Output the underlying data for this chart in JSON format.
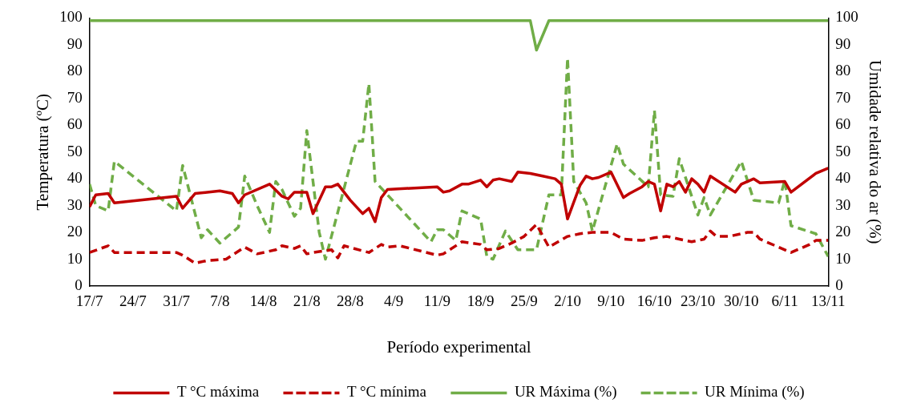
{
  "chart_data": {
    "type": "line",
    "xlabel": "Período experimental",
    "ylabel": "Temperatura (ºC)",
    "y2label": "Umidade relativa do ar (%)",
    "xlim": [
      "--07-17",
      "--11-13"
    ],
    "xticks": [
      {
        "value": "--07-17",
        "label": "17/7"
      },
      {
        "value": "--07-24",
        "label": "24/7"
      },
      {
        "value": "--07-31",
        "label": "31/7"
      },
      {
        "value": "--08-07",
        "label": "7/8"
      },
      {
        "value": "--08-14",
        "label": "14/8"
      },
      {
        "value": "--08-21",
        "label": "21/8"
      },
      {
        "value": "--08-28",
        "label": "28/8"
      },
      {
        "value": "--09-04",
        "label": "4/9"
      },
      {
        "value": "--09-11",
        "label": "11/9"
      },
      {
        "value": "--09-18",
        "label": "18/9"
      },
      {
        "value": "--09-25",
        "label": "25/9"
      },
      {
        "value": "--10-02",
        "label": "2/10"
      },
      {
        "value": "--10-09",
        "label": "9/10"
      },
      {
        "value": "--10-16",
        "label": "16/10"
      },
      {
        "value": "--10-23",
        "label": "23/10"
      },
      {
        "value": "--10-30",
        "label": "30/10"
      },
      {
        "value": "--11-06",
        "label": "6/11"
      },
      {
        "value": "--11-13",
        "label": "13/11"
      }
    ],
    "ylim": [
      0,
      100
    ],
    "yticks": [
      0,
      10,
      20,
      30,
      40,
      50,
      60,
      70,
      80,
      90,
      100
    ],
    "y2lim": [
      0,
      100
    ],
    "y2ticks": [
      0,
      10,
      20,
      30,
      40,
      50,
      60,
      70,
      80,
      90,
      100
    ],
    "grid": false,
    "legend": "bottom",
    "marker": "none",
    "series": [
      {
        "name": "T °C máxima",
        "color": "#c00000",
        "line_style": "solid",
        "x": [
          "--07-17",
          "--07-18",
          "--07-20",
          "--07-21",
          "--07-31",
          "--08-01",
          "--08-03",
          "--08-07",
          "--08-09",
          "--08-10",
          "--08-11",
          "--08-15",
          "--08-17",
          "--08-18",
          "--08-19",
          "--08-21",
          "--08-22",
          "--08-24",
          "--08-25",
          "--08-26",
          "--08-28",
          "--08-30",
          "--08-31",
          "--09-01",
          "--09-02",
          "--09-03",
          "--09-11",
          "--09-12",
          "--09-13",
          "--09-15",
          "--09-16",
          "--09-18",
          "--09-19",
          "--09-20",
          "--09-21",
          "--09-23",
          "--09-24",
          "--09-26",
          "--09-28",
          "--09-30",
          "--10-01",
          "--10-02",
          "--10-04",
          "--10-05",
          "--10-06",
          "--10-07",
          "--10-09",
          "--10-11",
          "--10-12",
          "--10-14",
          "--10-15",
          "--10-16",
          "--10-17",
          "--10-18",
          "--10-19",
          "--10-20",
          "--10-21",
          "--10-22",
          "--10-23",
          "--10-24",
          "--10-25",
          "--10-29",
          "--10-30",
          "--11-01",
          "--11-02",
          "--11-06",
          "--11-07",
          "--11-11",
          "--11-13"
        ],
        "values": [
          29.5,
          34,
          34.5,
          31,
          33.5,
          29,
          34.5,
          35.5,
          34.5,
          31,
          34,
          38,
          33.5,
          32.5,
          35,
          35,
          27,
          37,
          37,
          38,
          32,
          27,
          29,
          24,
          33,
          36,
          37,
          35,
          35.5,
          38,
          38,
          39.5,
          37,
          39.5,
          40,
          39,
          42.5,
          42,
          41,
          40,
          38,
          25,
          37.5,
          41,
          40,
          40.5,
          42.5,
          33,
          34.5,
          37,
          39,
          38,
          28,
          38,
          37,
          39,
          35,
          40,
          38,
          35,
          41,
          35,
          38,
          40,
          38.5,
          39,
          35,
          42,
          44
        ]
      },
      {
        "name": "T °C mínima",
        "color": "#c00000",
        "line_style": "dashed",
        "x": [
          "--07-17",
          "--07-20",
          "--07-21",
          "--07-31",
          "--08-01",
          "--08-03",
          "--08-05",
          "--08-08",
          "--08-11",
          "--08-13",
          "--08-16",
          "--08-17",
          "--08-19",
          "--08-20",
          "--08-21",
          "--08-22",
          "--08-25",
          "--08-26",
          "--08-27",
          "--08-31",
          "--09-02",
          "--09-03",
          "--09-05",
          "--09-11",
          "--09-12",
          "--09-15",
          "--09-18",
          "--09-19",
          "--09-21",
          "--09-23",
          "--09-25",
          "--09-27",
          "--09-29",
          "--10-02",
          "--10-04",
          "--10-06",
          "--10-09",
          "--10-11",
          "--10-14",
          "--10-16",
          "--10-18",
          "--10-20",
          "--10-22",
          "--10-24",
          "--10-25",
          "--10-26",
          "--10-28",
          "--10-31",
          "--11-01",
          "--11-02",
          "--11-06",
          "--11-07",
          "--11-10",
          "--11-11",
          "--11-13"
        ],
        "values": [
          12.5,
          15,
          12.5,
          12.5,
          11.5,
          8.5,
          9.5,
          10,
          14.5,
          12,
          13.5,
          15,
          14,
          15,
          12,
          12.5,
          13.5,
          10.5,
          15,
          12.5,
          15.5,
          14.5,
          15,
          11.5,
          12,
          16.5,
          15.5,
          13.5,
          14,
          16,
          18.5,
          23,
          14.5,
          18.5,
          19.5,
          20,
          20,
          17.5,
          17,
          18,
          18.5,
          17.5,
          16.5,
          17.5,
          20.5,
          18.5,
          18.5,
          20,
          20,
          17.5,
          13.5,
          12.5,
          15.5,
          17,
          17
        ]
      },
      {
        "name": "UR Máxima (%)",
        "color": "#70ad47",
        "line_style": "solid",
        "axis": "y2",
        "x": [
          "--07-17",
          "--09-26",
          "--09-27",
          "--09-29",
          "--11-13"
        ],
        "values": [
          99,
          99,
          88,
          99,
          99
        ]
      },
      {
        "name": "UR Mínima (%)",
        "color": "#70ad47",
        "line_style": "dashed",
        "axis": "y2",
        "x": [
          "--07-17",
          "--07-18",
          "--07-20",
          "--07-21",
          "--07-31",
          "--08-01",
          "--08-04",
          "--08-05",
          "--08-07",
          "--08-10",
          "--08-11",
          "--08-13",
          "--08-15",
          "--08-16",
          "--08-17",
          "--08-19",
          "--08-20",
          "--08-21",
          "--08-23",
          "--08-24",
          "--08-29",
          "--08-30",
          "--08-31",
          "--09-01",
          "--09-10",
          "--09-11",
          "--09-12",
          "--09-14",
          "--09-15",
          "--09-18",
          "--09-19",
          "--09-20",
          "--09-22",
          "--09-24",
          "--09-27",
          "--09-29",
          "--10-01",
          "--10-02",
          "--10-03",
          "--10-05",
          "--10-06",
          "--10-10",
          "--10-11",
          "--10-15",
          "--10-16",
          "--10-17",
          "--10-19",
          "--10-20",
          "--10-23",
          "--10-24",
          "--10-25",
          "--10-30",
          "--11-01",
          "--11-05",
          "--11-06",
          "--11-07",
          "--11-11",
          "--11-13"
        ],
        "values": [
          38,
          30,
          28,
          46.5,
          28,
          45,
          18,
          21,
          16,
          22,
          41,
          30,
          20,
          39,
          36,
          26,
          29,
          58,
          20,
          10,
          54,
          54,
          75.5,
          39,
          16.5,
          21,
          21,
          17,
          28,
          25,
          11,
          10,
          20.5,
          13.5,
          13.5,
          34,
          34,
          85,
          39,
          31,
          20.5,
          53,
          45.5,
          37,
          65.5,
          34,
          33.5,
          47.5,
          26.5,
          33,
          26.5,
          46.5,
          32,
          31,
          39.5,
          22.5,
          19.5,
          11
        ]
      }
    ]
  }
}
